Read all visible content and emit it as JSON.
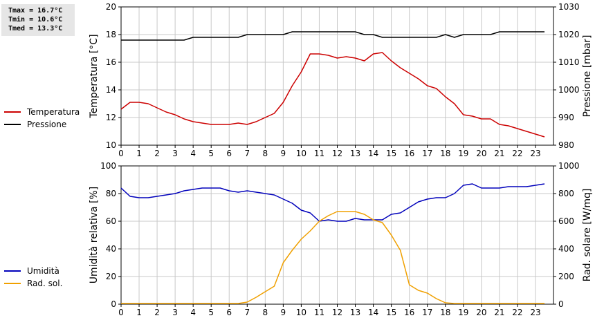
{
  "stats": {
    "tmax": "Tmax = 16.7°C",
    "tmin": "Tmin = 10.6°C",
    "tmed": "Tmed = 13.3°C"
  },
  "colors": {
    "temperature": "#cc0000",
    "pressure": "#000000",
    "humidity": "#0000bb",
    "radiation": "#f0a000",
    "grid": "#c8c8c8"
  },
  "chart_data": [
    {
      "type": "line",
      "x_ticks": [
        0,
        1,
        2,
        3,
        4,
        5,
        6,
        7,
        8,
        9,
        10,
        11,
        12,
        13,
        14,
        15,
        16,
        17,
        18,
        19,
        20,
        21,
        22,
        23
      ],
      "xlim": [
        0,
        24
      ],
      "ylabel": "Temperatura [°C]",
      "y2label": "Pressione [mbar]",
      "ylim": [
        10,
        20
      ],
      "y2lim": [
        980,
        1030
      ],
      "y_ticks": [
        10,
        12,
        14,
        16,
        18,
        20
      ],
      "y2_ticks": [
        980,
        990,
        1000,
        1010,
        1020,
        1030
      ],
      "grid": true,
      "legend_position": "left",
      "series": [
        {
          "name": "Temperatura",
          "axis": "left",
          "x": [
            0,
            0.5,
            1,
            1.5,
            2,
            2.5,
            3,
            3.5,
            4,
            4.5,
            5,
            5.5,
            6,
            6.5,
            7,
            7.5,
            8,
            8.5,
            9,
            9.5,
            10,
            10.5,
            11,
            11.5,
            12,
            12.5,
            13,
            13.5,
            14,
            14.5,
            15,
            15.5,
            16,
            16.5,
            17,
            17.5,
            18,
            18.5,
            19,
            19.5,
            20,
            20.5,
            21,
            21.5,
            22,
            22.5,
            23,
            23.5
          ],
          "values": [
            12.6,
            13.1,
            13.1,
            13.0,
            12.7,
            12.4,
            12.2,
            11.9,
            11.7,
            11.6,
            11.5,
            11.5,
            11.5,
            11.6,
            11.5,
            11.7,
            12.0,
            12.3,
            13.1,
            14.3,
            15.3,
            16.6,
            16.6,
            16.5,
            16.3,
            16.4,
            16.3,
            16.1,
            16.6,
            16.7,
            16.1,
            15.6,
            15.2,
            14.8,
            14.3,
            14.1,
            13.5,
            13.0,
            12.2,
            12.1,
            11.9,
            11.9,
            11.5,
            11.4,
            11.2,
            11.0,
            10.8,
            10.6
          ]
        },
        {
          "name": "Pressione",
          "axis": "right",
          "x": [
            0,
            0.5,
            1,
            1.5,
            2,
            2.5,
            3,
            3.5,
            4,
            4.5,
            5,
            5.5,
            6,
            6.5,
            7,
            7.5,
            8,
            8.5,
            9,
            9.5,
            10,
            10.5,
            11,
            11.5,
            12,
            12.5,
            13,
            13.5,
            14,
            14.5,
            15,
            15.5,
            16,
            16.5,
            17,
            17.5,
            18,
            18.5,
            19,
            19.5,
            20,
            20.5,
            21,
            21.5,
            22,
            22.5,
            23,
            23.5
          ],
          "values": [
            1018,
            1018,
            1018,
            1018,
            1018,
            1018,
            1018,
            1018,
            1019,
            1019,
            1019,
            1019,
            1019,
            1019,
            1020,
            1020,
            1020,
            1020,
            1020,
            1021,
            1021,
            1021,
            1021,
            1021,
            1021,
            1021,
            1021,
            1020,
            1020,
            1019,
            1019,
            1019,
            1019,
            1019,
            1019,
            1019,
            1020,
            1019,
            1020,
            1020,
            1020,
            1020,
            1021,
            1021,
            1021,
            1021,
            1021,
            1021
          ]
        }
      ]
    },
    {
      "type": "line",
      "x_ticks": [
        0,
        1,
        2,
        3,
        4,
        5,
        6,
        7,
        8,
        9,
        10,
        11,
        12,
        13,
        14,
        15,
        16,
        17,
        18,
        19,
        20,
        21,
        22,
        23
      ],
      "xlim": [
        0,
        24
      ],
      "ylabel": "Umidità relativa [%]",
      "y2label": "Rad. solare [W/mq]",
      "ylim": [
        0,
        100
      ],
      "y2lim": [
        0,
        1000
      ],
      "y_ticks": [
        0,
        20,
        40,
        60,
        80,
        100
      ],
      "y2_ticks": [
        0,
        200,
        400,
        600,
        800,
        1000
      ],
      "grid": true,
      "legend_position": "left",
      "series": [
        {
          "name": "Umidità",
          "axis": "left",
          "x": [
            0,
            0.5,
            1,
            1.5,
            2,
            2.5,
            3,
            3.5,
            4,
            4.5,
            5,
            5.5,
            6,
            6.5,
            7,
            7.5,
            8,
            8.5,
            9,
            9.5,
            10,
            10.5,
            11,
            11.5,
            12,
            12.5,
            13,
            13.5,
            14,
            14.5,
            15,
            15.5,
            16,
            16.5,
            17,
            17.5,
            18,
            18.5,
            19,
            19.5,
            20,
            20.5,
            21,
            21.5,
            22,
            22.5,
            23,
            23.5
          ],
          "values": [
            84,
            78,
            77,
            77,
            78,
            79,
            80,
            82,
            83,
            84,
            84,
            84,
            82,
            81,
            82,
            81,
            80,
            79,
            76,
            73,
            68,
            66,
            60,
            61,
            60,
            60,
            62,
            61,
            61,
            61,
            65,
            66,
            70,
            74,
            76,
            77,
            77,
            80,
            86,
            87,
            84,
            84,
            84,
            85,
            85,
            85,
            86,
            87
          ]
        },
        {
          "name": "Rad. sol.",
          "axis": "right",
          "x": [
            0,
            0.5,
            1,
            1.5,
            2,
            2.5,
            3,
            3.5,
            4,
            4.5,
            5,
            5.5,
            6,
            6.5,
            7,
            7.5,
            8,
            8.5,
            9,
            9.5,
            10,
            10.5,
            11,
            11.5,
            12,
            12.5,
            13,
            13.5,
            14,
            14.5,
            15,
            15.5,
            16,
            16.5,
            17,
            17.5,
            18,
            18.5,
            19,
            19.5,
            20,
            20.5,
            21,
            21.5,
            22,
            22.5,
            23,
            23.5
          ],
          "values": [
            5,
            5,
            5,
            5,
            5,
            5,
            5,
            5,
            5,
            5,
            5,
            5,
            5,
            5,
            15,
            50,
            90,
            130,
            300,
            390,
            470,
            530,
            600,
            640,
            670,
            670,
            670,
            650,
            610,
            590,
            500,
            390,
            140,
            100,
            80,
            40,
            10,
            5,
            5,
            5,
            5,
            5,
            5,
            5,
            5,
            5,
            5,
            5
          ]
        }
      ]
    }
  ]
}
